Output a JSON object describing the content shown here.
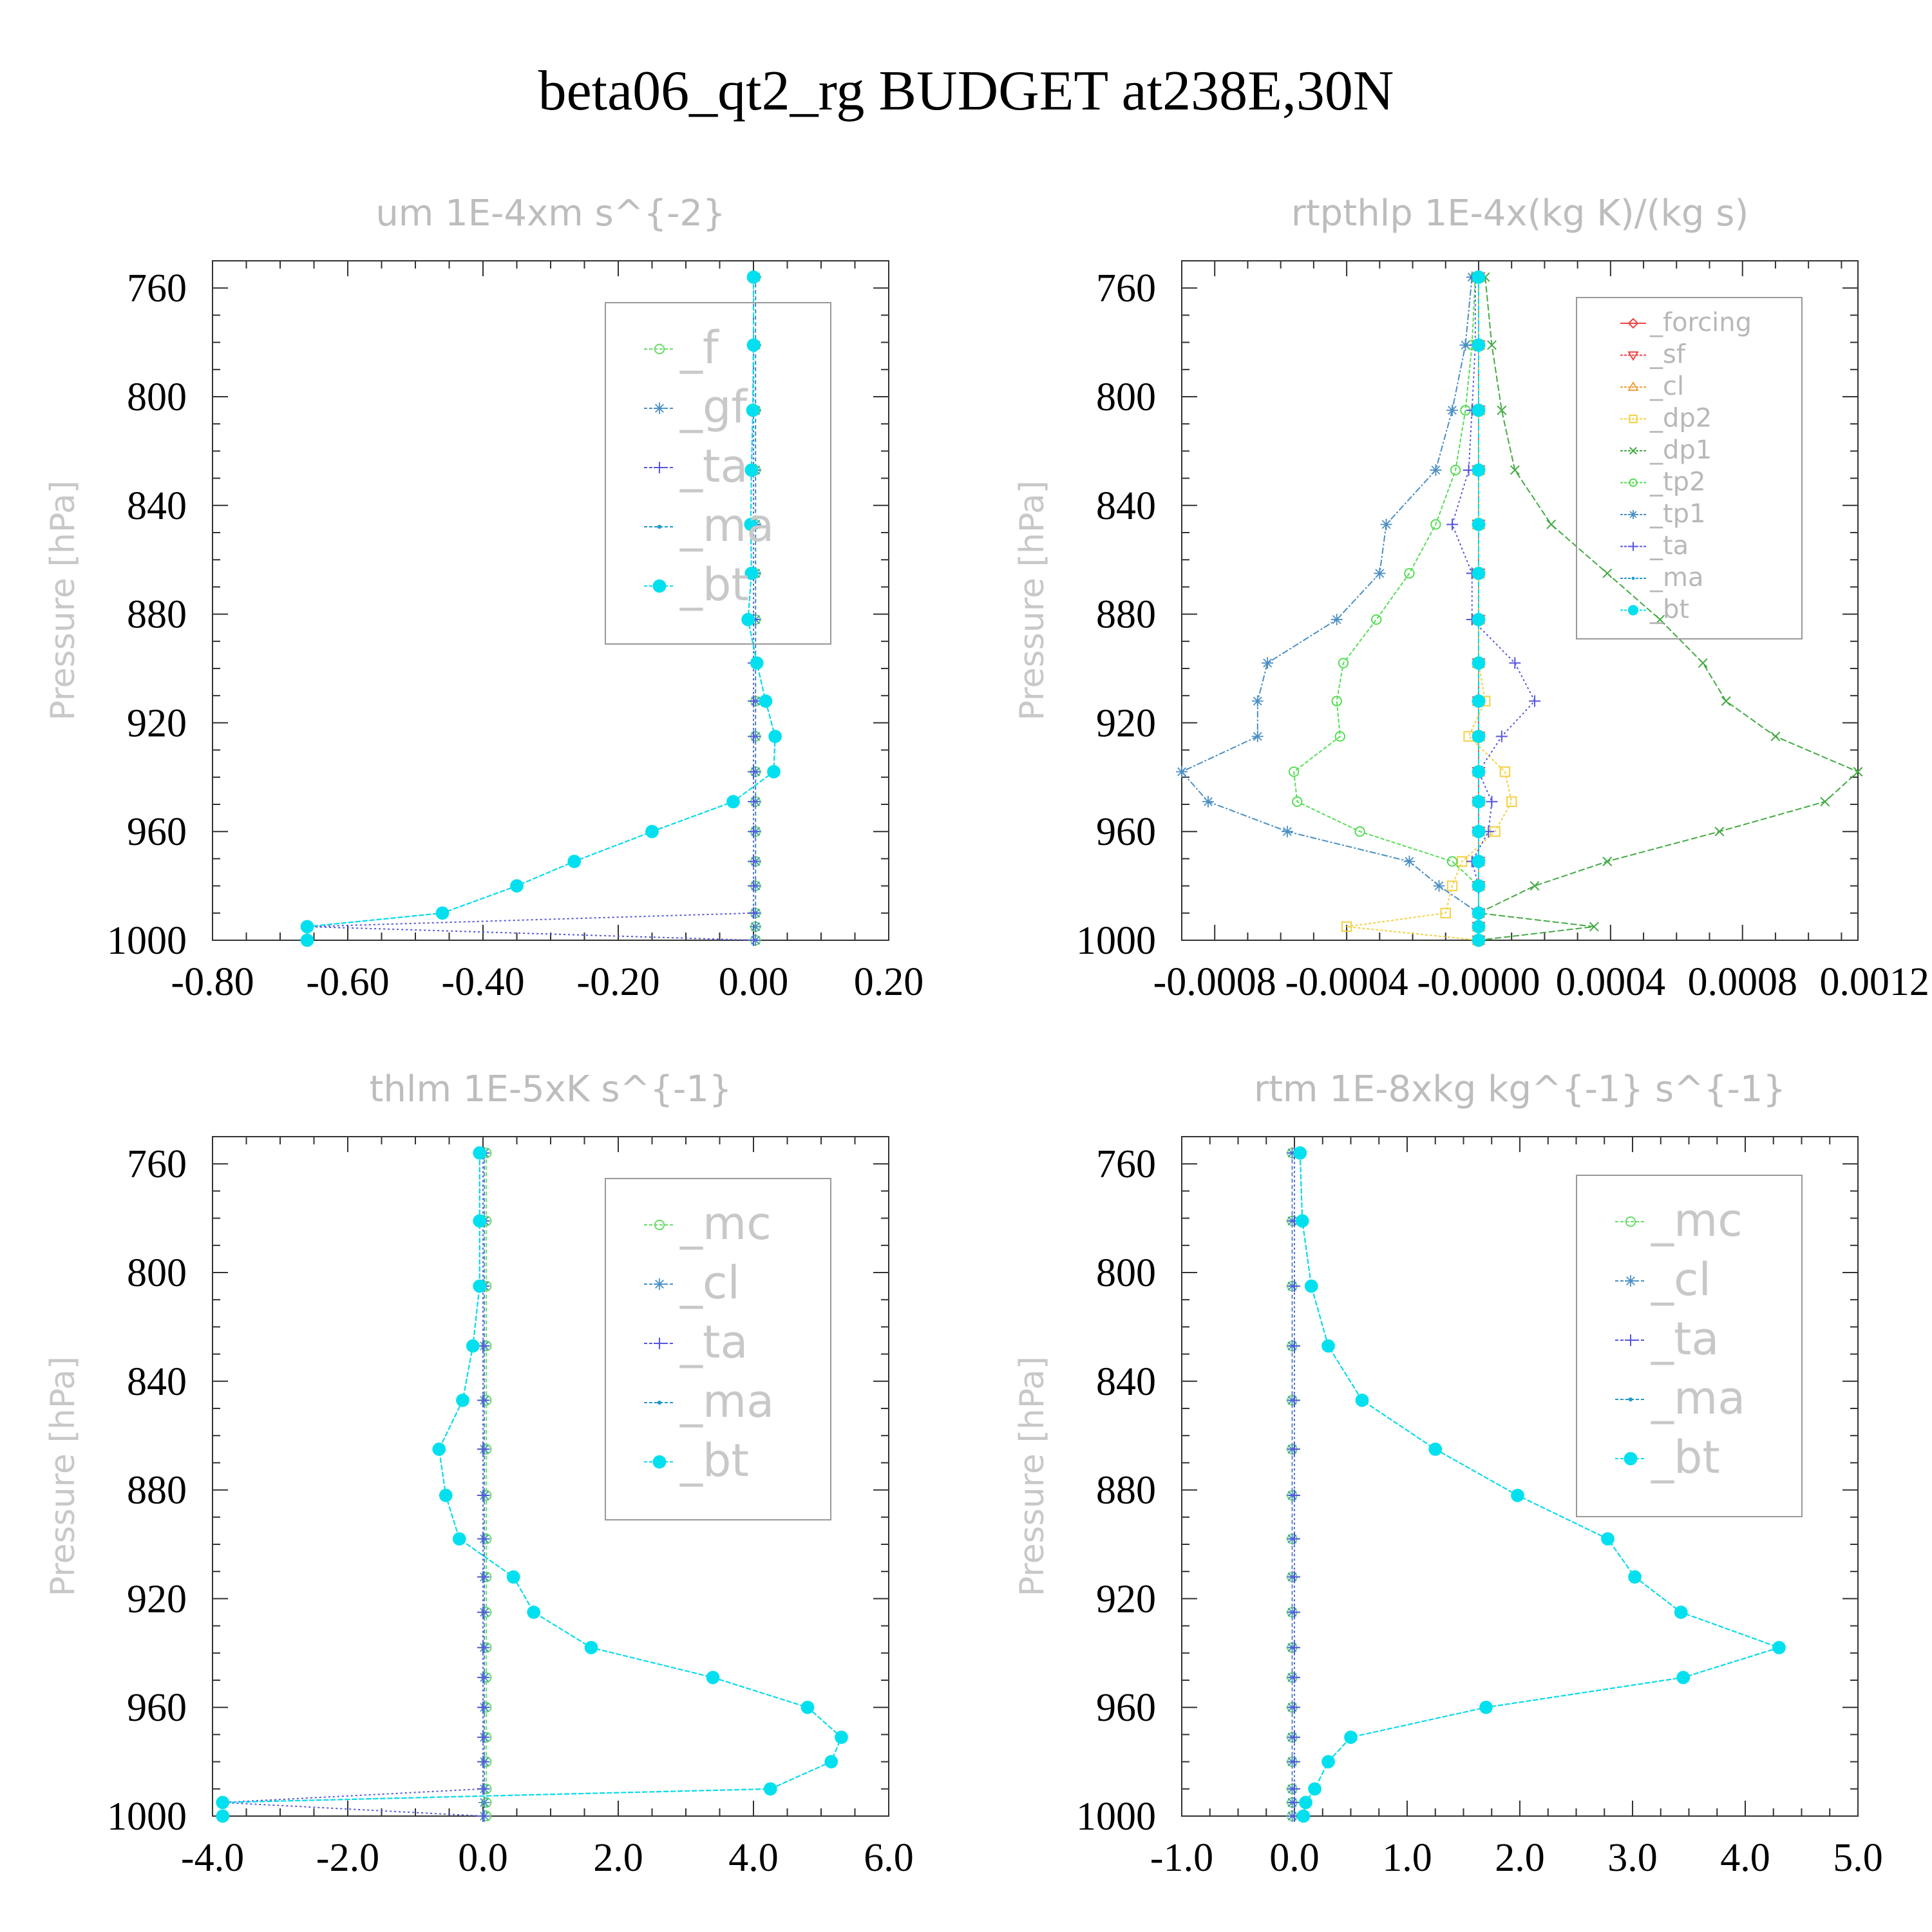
{
  "title": "beta06_qt2_rg  BUDGET at238E,30N",
  "chart_data": [
    {
      "type": "line",
      "title": "um  1E-4xm s^{-2}",
      "ylabel": "Pressure [hPa]",
      "xlim": [
        -0.8,
        0.2
      ],
      "ylim": [
        750,
        1000
      ],
      "xticks": [
        "-0.80",
        "-0.60",
        "-0.40",
        "-0.20",
        "0.00",
        "0.20"
      ],
      "yticks": [
        "760",
        "800",
        "840",
        "880",
        "920",
        "960",
        "1000"
      ],
      "legend_placement": "top-right",
      "legend_style": "big",
      "pressure": [
        756,
        781,
        805,
        827,
        847,
        865,
        882,
        898,
        912,
        925,
        938,
        949,
        960,
        971,
        980,
        990,
        995,
        1000
      ],
      "series": [
        {
          "name": "_f",
          "color": "#66dd66",
          "marker": "circle-open",
          "dash": "6,4",
          "values": [
            0.003,
            0.003,
            0.003,
            0.003,
            0.003,
            0.003,
            0.003,
            0.003,
            0.003,
            0.003,
            0.003,
            0.003,
            0.003,
            0.003,
            0.003,
            0.003,
            0.003,
            0.003
          ]
        },
        {
          "name": "_gf",
          "color": "#4a8fc4",
          "marker": "asterisk",
          "dash": "6,4",
          "values": [
            0.003,
            0.003,
            0.003,
            0.003,
            0.003,
            0.003,
            0.003,
            0.003,
            0.003,
            0.003,
            0.003,
            0.003,
            0.003,
            0.003,
            0.003,
            0.003,
            0.003,
            0.003
          ]
        },
        {
          "name": "_ta",
          "color": "#5555dd",
          "marker": "plus",
          "dash": "3,4",
          "values": [
            0,
            0,
            0,
            0,
            0,
            0,
            0,
            0,
            0,
            0,
            0,
            0,
            0,
            0,
            0,
            0,
            -0.66,
            0.0
          ]
        },
        {
          "name": "_ma",
          "color": "#2299cc",
          "marker": "dot",
          "dash": "8,3",
          "values": [
            0.0,
            0.0,
            -0.001,
            -0.003,
            -0.004,
            -0.003,
            -0.008,
            0.005,
            0.018,
            0.032,
            0.03,
            -0.03,
            -0.15,
            -0.265,
            -0.35,
            -0.46,
            -0.66,
            -0.66
          ]
        },
        {
          "name": "_bt",
          "color": "#00e0ee",
          "marker": "filled",
          "dash": "8,3",
          "values": [
            0.0,
            0.0,
            -0.001,
            -0.003,
            -0.004,
            -0.003,
            -0.008,
            0.005,
            0.018,
            0.032,
            0.03,
            -0.03,
            -0.15,
            -0.265,
            -0.35,
            -0.46,
            -0.66,
            -0.66
          ]
        }
      ]
    },
    {
      "type": "line",
      "title": "rtpthlp  1E-4x(kg K)/(kg s)",
      "ylabel": "Pressure [hPa]",
      "xlim": [
        -0.0009,
        0.00115
      ],
      "ylim": [
        750,
        1000
      ],
      "xticks": [
        "-0.0008",
        "-0.0004",
        "-0.0000",
        "0.0004",
        "0.0008",
        "0.0012"
      ],
      "xtick_values": [
        -0.0008,
        -0.0004,
        0.0,
        0.0004,
        0.0008,
        0.0012
      ],
      "yticks": [
        "760",
        "800",
        "840",
        "880",
        "920",
        "960",
        "1000"
      ],
      "legend_placement": "top-right",
      "legend_style": "small",
      "pressure": [
        756,
        781,
        805,
        827,
        847,
        865,
        882,
        898,
        912,
        925,
        938,
        949,
        960,
        971,
        980,
        990,
        995,
        1000
      ],
      "series": [
        {
          "name": "_forcing",
          "color": "#ee4444",
          "marker": "diamond-open",
          "dash": "none",
          "values": [
            0,
            0,
            0,
            0,
            0,
            0,
            0,
            0,
            0,
            0,
            0,
            0,
            0,
            0,
            0,
            0,
            0,
            0
          ]
        },
        {
          "name": "_sf",
          "color": "#ee4444",
          "marker": "triangle-down",
          "dash": "6,3",
          "values": [
            0,
            0,
            0,
            0,
            0,
            0,
            0,
            0,
            0,
            0,
            0,
            0,
            0,
            0,
            0,
            0,
            0,
            0
          ]
        },
        {
          "name": "_cl",
          "color": "#f0a040",
          "marker": "triangle-up",
          "dash": "6,3",
          "values": [
            0,
            0,
            0,
            0,
            0,
            0,
            0,
            0,
            0,
            0,
            0,
            0,
            0,
            0,
            0,
            0,
            0,
            0
          ]
        },
        {
          "name": "_dp2",
          "color": "#f5d040",
          "marker": "square-open",
          "dash": "4,3",
          "values": [
            0,
            0,
            0,
            0,
            0,
            0,
            0,
            0,
            2e-05,
            -3e-05,
            8e-05,
            0.0001,
            5e-05,
            -5e-05,
            -8e-05,
            -0.0001,
            -0.0004,
            0.0
          ]
        },
        {
          "name": "_dp1",
          "color": "#44aa44",
          "marker": "x",
          "dash": "10,4",
          "values": [
            2e-05,
            4e-05,
            7e-05,
            0.00011,
            0.00022,
            0.00039,
            0.00055,
            0.00068,
            0.00075,
            0.0009,
            0.00115,
            0.00105,
            0.00073,
            0.00039,
            0.00017,
            0.0,
            0.00035,
            0.0
          ]
        },
        {
          "name": "_tp2",
          "color": "#55dd55",
          "marker": "circle-open",
          "dash": "6,3",
          "values": [
            -1e-05,
            -2e-05,
            -4e-05,
            -7e-05,
            -0.00013,
            -0.00021,
            -0.00031,
            -0.00041,
            -0.00043,
            -0.00042,
            -0.00056,
            -0.00055,
            -0.00036,
            -8e-05,
            0.0,
            0.0,
            0.0,
            0.0
          ]
        },
        {
          "name": "_tp1",
          "color": "#4a8fc4",
          "marker": "asterisk",
          "dash": "10,3,3,3",
          "values": [
            -2e-05,
            -4e-05,
            -8e-05,
            -0.00013,
            -0.00028,
            -0.0003,
            -0.00043,
            -0.00064,
            -0.00067,
            -0.00067,
            -0.0009,
            -0.00082,
            -0.00058,
            -0.00021,
            -0.00012,
            0.0,
            0.0,
            0.0
          ]
        },
        {
          "name": "_ta",
          "color": "#5555dd",
          "marker": "plus",
          "dash": "3,4",
          "values": [
            -1e-05,
            -1e-05,
            -2e-05,
            -3e-05,
            -8e-05,
            -2e-05,
            -2e-05,
            0.00011,
            0.00017,
            7e-05,
            0.0,
            4e-05,
            3e-05,
            -2e-05,
            0.0,
            0.0,
            0.0,
            0.0
          ]
        },
        {
          "name": "_ma",
          "color": "#2299cc",
          "marker": "dot",
          "dash": "8,3",
          "values": [
            0,
            0,
            0,
            0,
            0,
            0,
            0,
            0,
            0,
            0,
            0,
            0,
            0,
            0,
            0,
            0,
            0,
            0
          ]
        },
        {
          "name": "_bt",
          "color": "#00e0ee",
          "marker": "filled",
          "dash": "8,3",
          "values": [
            0,
            0,
            0,
            0,
            0,
            0,
            0,
            0,
            0,
            0,
            0,
            0,
            0,
            0,
            0,
            0,
            0,
            0
          ]
        }
      ]
    },
    {
      "type": "line",
      "title": "thlm  1E-5xK s^{-1}",
      "ylabel": "Pressure [hPa]",
      "xlim": [
        -4.0,
        6.0
      ],
      "ylim": [
        750,
        1000
      ],
      "xticks": [
        "-4.0",
        "-2.0",
        "0.0",
        "2.0",
        "4.0",
        "6.0"
      ],
      "yticks": [
        "760",
        "800",
        "840",
        "880",
        "920",
        "960",
        "1000"
      ],
      "legend_placement": "top-right",
      "legend_style": "big",
      "pressure": [
        756,
        781,
        805,
        827,
        847,
        865,
        882,
        898,
        912,
        925,
        938,
        949,
        960,
        971,
        980,
        990,
        995,
        1000
      ],
      "series": [
        {
          "name": "_mc",
          "color": "#66dd66",
          "marker": "circle-open",
          "dash": "6,4",
          "values": [
            0.05,
            0.05,
            0.05,
            0.05,
            0.05,
            0.05,
            0.05,
            0.05,
            0.05,
            0.05,
            0.05,
            0.05,
            0.05,
            0.05,
            0.05,
            0.05,
            0.05,
            0.05
          ]
        },
        {
          "name": "_cl",
          "color": "#4a8fc4",
          "marker": "asterisk",
          "dash": "6,4",
          "values": [
            0.02,
            0.02,
            0.02,
            0.02,
            0.02,
            0.02,
            0.02,
            0.02,
            0.02,
            0.02,
            0.02,
            0.02,
            0.02,
            0.02,
            0.02,
            0.02,
            0.02,
            0.02
          ]
        },
        {
          "name": "_ta",
          "color": "#5555dd",
          "marker": "plus",
          "dash": "3,4",
          "values": [
            0,
            0,
            0,
            0,
            0,
            0,
            0,
            0,
            0,
            0,
            0,
            0,
            0,
            0,
            0,
            0,
            -3.85,
            0.0
          ]
        },
        {
          "name": "_ma",
          "color": "#2299cc",
          "marker": "dot",
          "dash": "8,3",
          "values": [
            -0.05,
            -0.05,
            -0.05,
            -0.15,
            -0.3,
            -0.65,
            -0.55,
            -0.35,
            0.45,
            0.75,
            1.6,
            3.4,
            4.8,
            5.3,
            5.15,
            4.25,
            -3.85,
            -3.85
          ]
        },
        {
          "name": "_bt",
          "color": "#00e0ee",
          "marker": "filled",
          "dash": "8,3",
          "values": [
            -0.05,
            -0.05,
            -0.05,
            -0.15,
            -0.3,
            -0.65,
            -0.55,
            -0.35,
            0.45,
            0.75,
            1.6,
            3.4,
            4.8,
            5.3,
            5.15,
            4.25,
            -3.85,
            -3.85
          ]
        }
      ]
    },
    {
      "type": "line",
      "title": "rtm  1E-8xkg kg^{-1} s^{-1}",
      "ylabel": "Pressure [hPa]",
      "xlim": [
        -1.0,
        5.0
      ],
      "ylim": [
        750,
        1000
      ],
      "xticks": [
        "-1.0",
        "0.0",
        "1.0",
        "2.0",
        "3.0",
        "4.0",
        "5.0"
      ],
      "yticks": [
        "760",
        "800",
        "840",
        "880",
        "920",
        "960",
        "1000"
      ],
      "legend_placement": "top-right",
      "legend_style": "big",
      "pressure": [
        756,
        781,
        805,
        827,
        847,
        865,
        882,
        898,
        912,
        925,
        938,
        949,
        960,
        971,
        980,
        990,
        995,
        1000
      ],
      "series": [
        {
          "name": "_mc",
          "color": "#66dd66",
          "marker": "circle-open",
          "dash": "6,4",
          "values": [
            -0.02,
            -0.02,
            -0.02,
            -0.02,
            -0.02,
            -0.02,
            -0.02,
            -0.02,
            -0.02,
            -0.02,
            -0.02,
            -0.02,
            -0.02,
            -0.02,
            -0.02,
            -0.02,
            -0.02,
            -0.02
          ]
        },
        {
          "name": "_cl",
          "color": "#4a8fc4",
          "marker": "asterisk",
          "dash": "6,4",
          "values": [
            -0.02,
            -0.02,
            -0.02,
            -0.02,
            -0.02,
            -0.02,
            -0.02,
            -0.02,
            -0.02,
            -0.02,
            -0.02,
            -0.02,
            -0.02,
            -0.02,
            -0.02,
            -0.02,
            -0.02,
            -0.02
          ]
        },
        {
          "name": "_ta",
          "color": "#5555dd",
          "marker": "plus",
          "dash": "3,4",
          "values": [
            0,
            0,
            0,
            0,
            0,
            0,
            0,
            0,
            0,
            0,
            0,
            0,
            0,
            0,
            0,
            0,
            0,
            0
          ]
        },
        {
          "name": "_ma",
          "color": "#2299cc",
          "marker": "dot",
          "dash": "8,3",
          "values": [
            0.05,
            0.07,
            0.15,
            0.3,
            0.6,
            1.25,
            1.98,
            2.78,
            3.02,
            3.43,
            4.3,
            3.45,
            1.7,
            0.5,
            0.3,
            0.18,
            0.1,
            0.08
          ]
        },
        {
          "name": "_bt",
          "color": "#00e0ee",
          "marker": "filled",
          "dash": "8,3",
          "values": [
            0.05,
            0.07,
            0.15,
            0.3,
            0.6,
            1.25,
            1.98,
            2.78,
            3.02,
            3.43,
            4.3,
            3.45,
            1.7,
            0.5,
            0.3,
            0.18,
            0.1,
            0.08
          ]
        }
      ]
    }
  ]
}
